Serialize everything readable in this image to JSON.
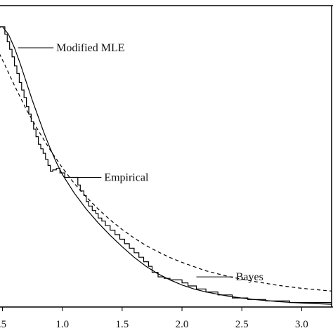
{
  "chart_data": {
    "type": "line",
    "title": "",
    "xlabel": "",
    "ylabel": "",
    "xlim": [
      0.45,
      3.25
    ],
    "ylim": [
      0.0,
      1.0
    ],
    "x_ticks": [
      0.5,
      1.0,
      1.5,
      2.0,
      2.5,
      3.0
    ],
    "x_tick_labels": [
      ".5",
      "1.0",
      "1.5",
      "2.0",
      "2.5",
      "3.0"
    ],
    "grid": false,
    "series": [
      {
        "name": "Modified MLE",
        "style": "solid",
        "x": [
          0.45,
          0.5,
          0.55,
          0.6,
          0.65,
          0.7,
          0.75,
          0.8,
          0.85,
          0.9,
          0.95,
          1.0,
          1.1,
          1.2,
          1.3,
          1.4,
          1.5,
          1.6,
          1.7,
          1.8,
          1.9,
          2.0,
          2.1,
          2.2,
          2.4,
          2.6,
          2.8,
          3.0,
          3.25
        ],
        "y": [
          0.925,
          0.93,
          0.905,
          0.86,
          0.805,
          0.745,
          0.685,
          0.63,
          0.575,
          0.525,
          0.48,
          0.44,
          0.378,
          0.325,
          0.279,
          0.238,
          0.2,
          0.165,
          0.135,
          0.11,
          0.09,
          0.073,
          0.06,
          0.05,
          0.035,
          0.025,
          0.018,
          0.013,
          0.009
        ]
      },
      {
        "name": "Empirical",
        "style": "step",
        "x": [
          0.45,
          0.5,
          0.52,
          0.54,
          0.56,
          0.58,
          0.6,
          0.62,
          0.64,
          0.66,
          0.68,
          0.7,
          0.72,
          0.74,
          0.76,
          0.78,
          0.8,
          0.82,
          0.84,
          0.86,
          0.88,
          0.9,
          0.92,
          0.95,
          0.98,
          1.02,
          1.06,
          1.1,
          1.13,
          1.15,
          1.18,
          1.2,
          1.22,
          1.25,
          1.28,
          1.3,
          1.33,
          1.36,
          1.4,
          1.44,
          1.48,
          1.52,
          1.56,
          1.6,
          1.64,
          1.68,
          1.72,
          1.75,
          1.8,
          1.85,
          1.9,
          2.0,
          2.05,
          2.12,
          2.2,
          2.3,
          2.42,
          2.55,
          2.7,
          2.9,
          3.25
        ],
        "y": [
          0.93,
          0.93,
          0.905,
          0.88,
          0.855,
          0.83,
          0.8,
          0.775,
          0.745,
          0.72,
          0.695,
          0.665,
          0.64,
          0.615,
          0.59,
          0.565,
          0.54,
          0.525,
          0.51,
          0.49,
          0.47,
          0.45,
          0.455,
          0.46,
          0.445,
          0.43,
          0.43,
          0.43,
          0.405,
          0.385,
          0.37,
          0.35,
          0.335,
          0.32,
          0.31,
          0.295,
          0.285,
          0.27,
          0.255,
          0.24,
          0.225,
          0.21,
          0.195,
          0.18,
          0.165,
          0.15,
          0.135,
          0.115,
          0.1,
          0.095,
          0.09,
          0.08,
          0.07,
          0.06,
          0.05,
          0.04,
          0.03,
          0.025,
          0.02,
          0.015,
          0.015
        ]
      },
      {
        "name": "Bayes",
        "style": "dashed",
        "x": [
          0.45,
          0.5,
          0.6,
          0.7,
          0.8,
          0.9,
          1.0,
          1.1,
          1.2,
          1.3,
          1.4,
          1.5,
          1.6,
          1.7,
          1.8,
          1.9,
          2.0,
          2.2,
          2.4,
          2.6,
          2.8,
          3.0,
          3.25
        ],
        "y": [
          0.86,
          0.82,
          0.735,
          0.655,
          0.585,
          0.52,
          0.462,
          0.41,
          0.365,
          0.325,
          0.289,
          0.257,
          0.229,
          0.204,
          0.183,
          0.164,
          0.148,
          0.12,
          0.1,
          0.085,
          0.072,
          0.062,
          0.053
        ]
      }
    ],
    "annotations": [
      {
        "text": "Modified MLE",
        "target": [
          0.63,
          0.86
        ],
        "label_pos": [
          0.95,
          0.86
        ]
      },
      {
        "text": "Empirical",
        "target": [
          1.1,
          0.43
        ],
        "label_pos": [
          1.35,
          0.43
        ]
      },
      {
        "text": "Bayes",
        "target": [
          2.12,
          0.1
        ],
        "label_pos": [
          2.45,
          0.1
        ]
      }
    ]
  }
}
